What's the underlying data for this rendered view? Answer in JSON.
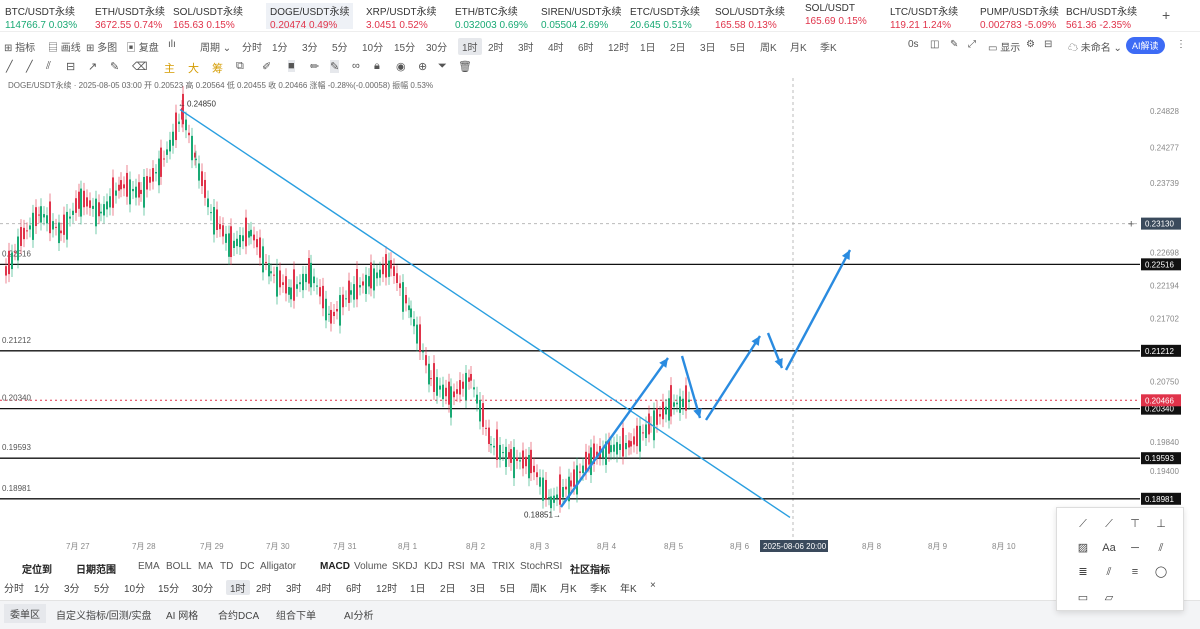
{
  "tickers": [
    {
      "name": "BTC/USDT永续",
      "price": "114766.7",
      "change": "0.03%",
      "dir": "up"
    },
    {
      "name": "ETH/USDT永续",
      "price": "3672.55",
      "change": "0.74%",
      "dir": "dn"
    },
    {
      "name": "SOL/USDT永续",
      "price": "165.63",
      "change": "0.15%",
      "dir": "dn"
    },
    {
      "name": "DOGE/USDT永续",
      "price": "0.20474",
      "change": "0.49%",
      "dir": "dn"
    },
    {
      "name": "XRP/USDT永续",
      "price": "3.0451",
      "change": "0.52%",
      "dir": "dn"
    },
    {
      "name": "ETH/BTC永续",
      "price": "0.032003",
      "change": "0.69%",
      "dir": "up"
    },
    {
      "name": "SIREN/USDT永续",
      "price": "0.05504",
      "change": "2.69%",
      "dir": "up"
    },
    {
      "name": "ETC/USDT永续",
      "price": "20.645",
      "change": "0.51%",
      "dir": "up"
    },
    {
      "name": "SOL/USDT永续",
      "price": "165.58",
      "change": "0.13%",
      "dir": "dn"
    },
    {
      "name": "SOL/USDT",
      "price": "165.69",
      "change": "0.15%",
      "dir": "dn"
    },
    {
      "name": "LTC/USDT永续",
      "price": "119.21",
      "change": "1.24%",
      "dir": "dn"
    },
    {
      "name": "PUMP/USDT永续",
      "price": "0.002783",
      "change": "-5.09%",
      "dir": "dn"
    },
    {
      "name": "BCH/USDT永续",
      "price": "561.36",
      "change": "-2.35%",
      "dir": "dn"
    }
  ],
  "toolbar": {
    "left": [
      "指标",
      "画线",
      "多图",
      "复盘",
      "周期"
    ],
    "periods": [
      "分时",
      "1分",
      "3分",
      "5分",
      "10分",
      "15分",
      "30分",
      "1时",
      "2时",
      "3时",
      "4时",
      "6时",
      "12时",
      "1日",
      "2日",
      "3日",
      "5日",
      "周K",
      "月K",
      "季K"
    ],
    "selected_period": "1时",
    "right": [
      "0s",
      "显示",
      "未命名"
    ],
    "ai": "AI解读"
  },
  "drawbar": [
    "主",
    "大",
    "筹"
  ],
  "ohlc": "DOGE/USDT永续 · 2025-08-05 03:00 开 0.20523 高 0.20564 低 0.20455 收 0.20466 涨幅 -0.28%(-0.00058) 振幅 0.53%",
  "chart": {
    "price_axis": [
      "0.24828",
      "0.24277",
      "0.23739",
      "0.22698",
      "0.22194",
      "0.21702",
      "0.20750",
      "0.19840",
      "0.19400"
    ],
    "levels": [
      {
        "label": "0.22516",
        "left_label": "0.22516"
      },
      {
        "label": "0.21212",
        "left_label": "0.21212"
      },
      {
        "label": "0.20340",
        "left_label": "0.20340"
      },
      {
        "label": "0.19593",
        "left_label": "0.19593"
      },
      {
        "label": "0.18981",
        "left_label": "0.18981"
      }
    ],
    "crosshair_price": "0.23130",
    "current_price": "0.20466",
    "high_label": "0.24850",
    "low_label": "0.18851",
    "dates": [
      "7月 27",
      "7月 28",
      "7月 29",
      "7月 30",
      "7月 31",
      "8月 1",
      "8月 2",
      "8月 3",
      "8月 4",
      "8月 5",
      "8月 6",
      "8月 8",
      "8月 9",
      "8月 10"
    ],
    "crosshair_date": "2025-08-06 20:00",
    "line_color": "#2a9fe0",
    "arrow_color": "#2a8be0"
  },
  "bottom1": [
    "定位到",
    "日期范围",
    "EMA",
    "BOLL",
    "MA",
    "TD",
    "DC",
    "Alligator",
    "MACD",
    "Volume",
    "SKDJ",
    "KDJ",
    "RSI",
    "MA",
    "TRIX",
    "StochRSI",
    "社区指标"
  ],
  "bottom2": [
    "分时",
    "1分",
    "3分",
    "5分",
    "10分",
    "15分",
    "30分",
    "1时",
    "2时",
    "3时",
    "4时",
    "6时",
    "12时",
    "1日",
    "2日",
    "3日",
    "5日",
    "周K",
    "月K",
    "季K",
    "年K",
    "×"
  ],
  "bottom2_selected": "1时",
  "bottom3": [
    "委单区",
    "自定义指标/回测/实盘",
    "AI 网格",
    "合约DCA",
    "组合下单",
    "AI分析"
  ]
}
